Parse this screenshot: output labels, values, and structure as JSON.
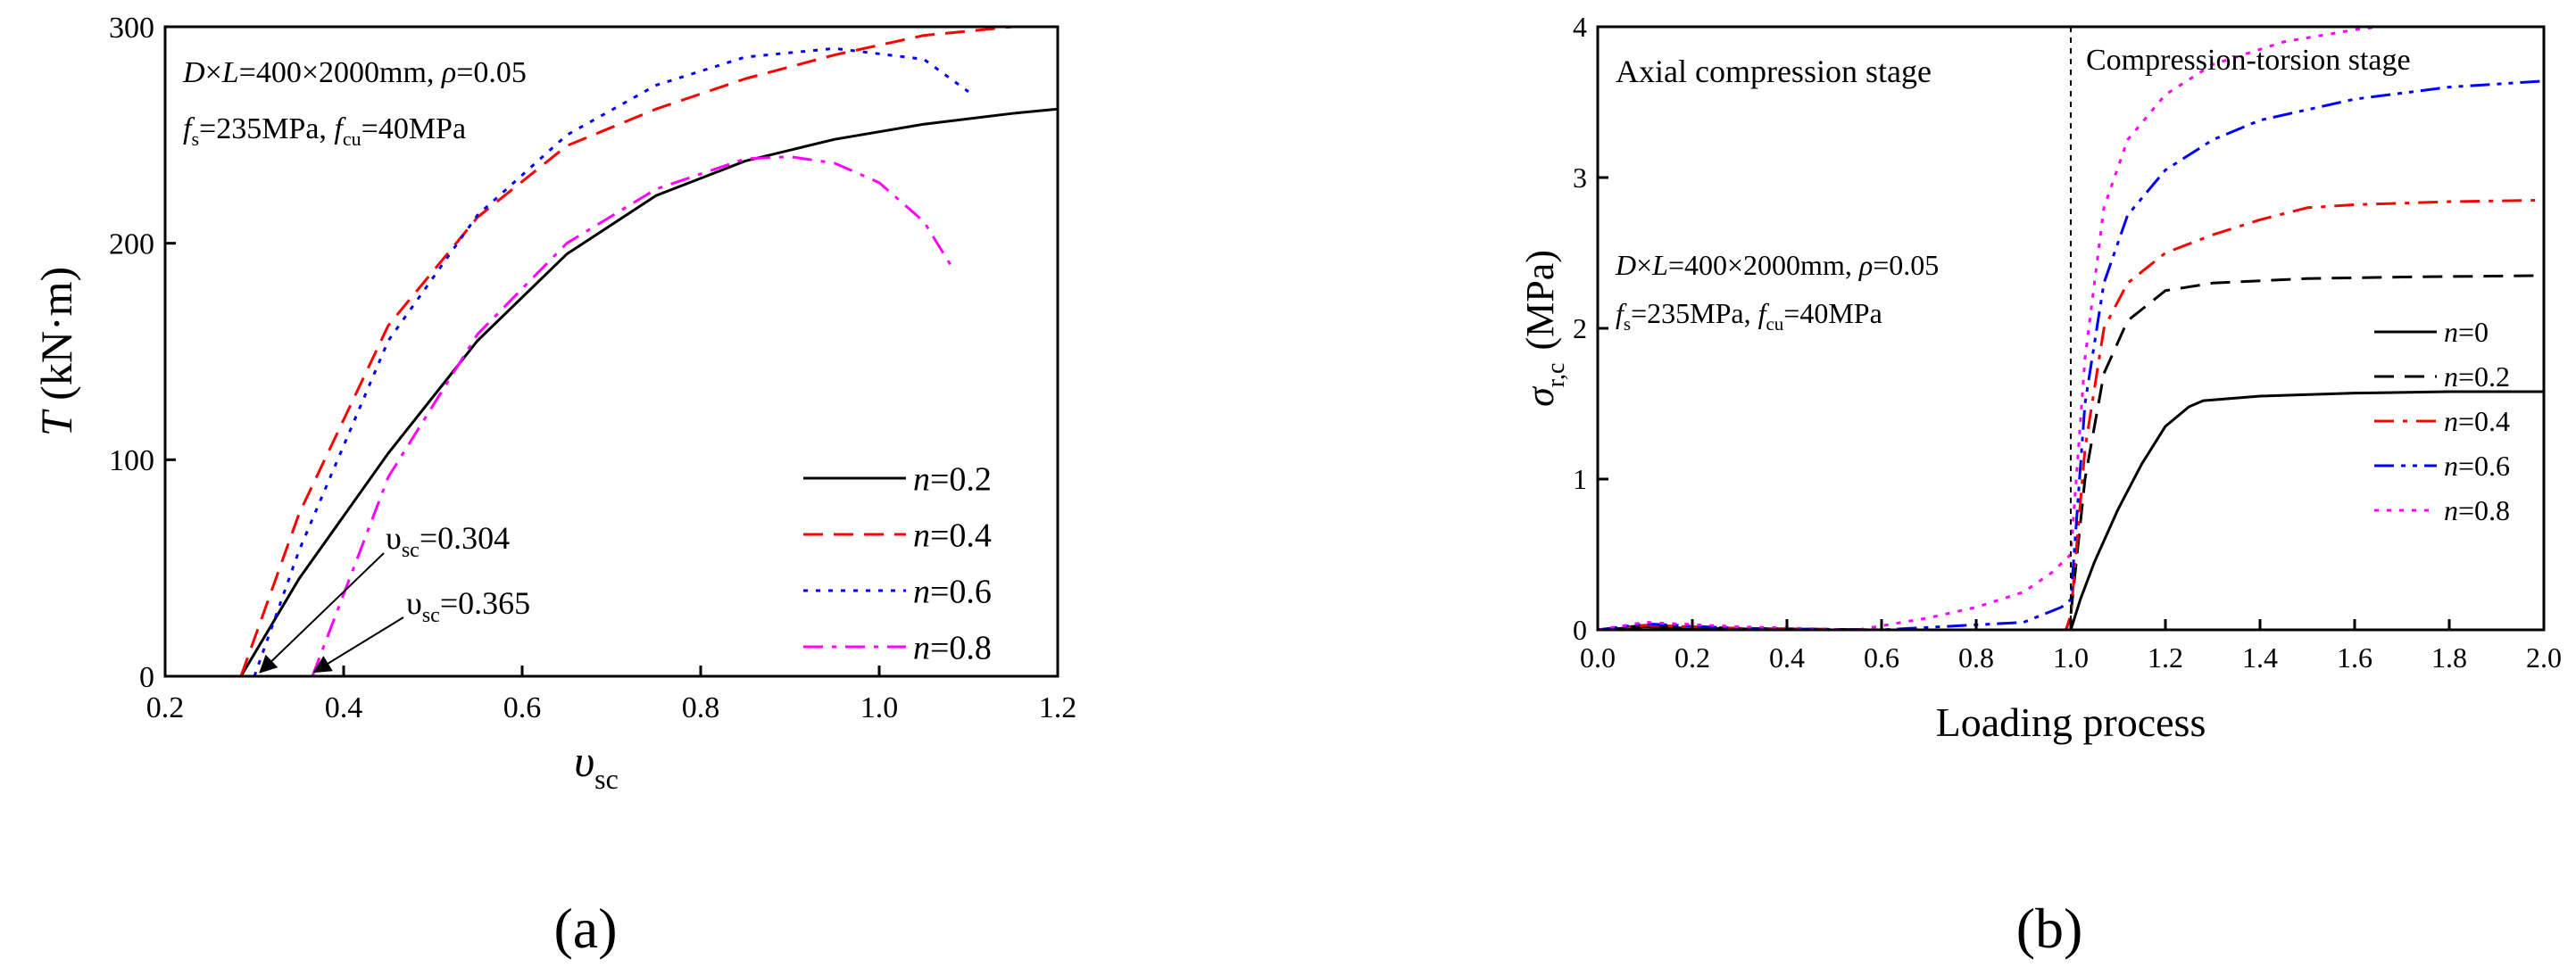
{
  "chart_data": [
    {
      "id": "a",
      "type": "line",
      "panel_label": "(a)",
      "xlabel_main": "υ",
      "xlabel_sub": "sc",
      "ylabel_main": "T",
      "ylabel_rest": " (kN·m)",
      "xlim": [
        0.2,
        1.2
      ],
      "ylim": [
        0,
        300
      ],
      "xticks": [
        "0.2",
        "0.4",
        "0.6",
        "0.8",
        "1.0",
        "1.2"
      ],
      "yticks": [
        "0",
        "100",
        "200",
        "300"
      ],
      "info_line1": "D×L=400×2000mm, ρ=0.05",
      "info_line2": "fs=235MPa, fcu=40MPa",
      "series": [
        {
          "name": "n=0.2",
          "color": "#000000",
          "dash": "solid",
          "x": [
            0.285,
            0.35,
            0.45,
            0.55,
            0.65,
            0.75,
            0.85,
            0.95,
            1.05,
            1.15,
            1.2
          ],
          "y": [
            0,
            45,
            103,
            155,
            195,
            222,
            238,
            248,
            255,
            260,
            262
          ]
        },
        {
          "name": "n=0.4",
          "color": "#ff0000",
          "dash": "dash",
          "x": [
            0.285,
            0.35,
            0.45,
            0.55,
            0.65,
            0.75,
            0.85,
            0.95,
            1.05,
            1.15
          ],
          "y": [
            0,
            75,
            162,
            212,
            245,
            262,
            276,
            287,
            296,
            300
          ]
        },
        {
          "name": "n=0.6",
          "color": "#0000ff",
          "dash": "dot",
          "x": [
            0.3,
            0.35,
            0.45,
            0.55,
            0.65,
            0.75,
            0.85,
            0.95,
            1.05,
            1.1
          ],
          "y": [
            0,
            58,
            155,
            213,
            250,
            273,
            286,
            290,
            285,
            270
          ]
        },
        {
          "name": "n=0.8",
          "color": "#ff00ff",
          "dash": "dashdot",
          "x": [
            0.365,
            0.45,
            0.55,
            0.65,
            0.75,
            0.85,
            0.9,
            0.95,
            1.0,
            1.05,
            1.08
          ],
          "y": [
            0,
            92,
            158,
            200,
            225,
            239,
            240,
            237,
            228,
            210,
            190
          ]
        }
      ],
      "annotations": [
        {
          "text_main": "υ",
          "text_sub": "sc",
          "text_rest": "=0.304",
          "x": 0.304
        },
        {
          "text_main": "υ",
          "text_sub": "sc",
          "text_rest": "=0.365",
          "x": 0.365
        }
      ]
    },
    {
      "id": "b",
      "type": "line",
      "panel_label": "(b)",
      "xlabel": "Loading process",
      "ylabel_main": "σ",
      "ylabel_sub": "r,c",
      "ylabel_rest": "(MPa)",
      "xlim": [
        0.0,
        2.0
      ],
      "ylim": [
        0,
        4
      ],
      "xticks": [
        "0.0",
        "0.2",
        "0.4",
        "0.6",
        "0.8",
        "1.0",
        "1.2",
        "1.4",
        "1.6",
        "1.8",
        "2.0"
      ],
      "yticks": [
        "0",
        "1",
        "2",
        "3",
        "4"
      ],
      "stage_left": "Axial compression  stage",
      "stage_right": "Compression-torsion stage",
      "divider_x": 1.0,
      "info_line1": "D×L=400×2000mm, ρ=0.05",
      "info_line2": "fs=235MPa, fcu=40MPa",
      "series": [
        {
          "name": "n=0",
          "color": "#000000",
          "dash": "solid",
          "x": [
            0,
            0.1,
            0.2,
            0.5,
            0.99,
            1.0,
            1.02,
            1.05,
            1.1,
            1.15,
            1.2,
            1.25,
            1.28,
            1.4,
            1.6,
            1.8,
            2.0
          ],
          "y": [
            0,
            0.02,
            0.01,
            0,
            0,
            0,
            0.2,
            0.45,
            0.8,
            1.1,
            1.35,
            1.48,
            1.52,
            1.55,
            1.57,
            1.58,
            1.58
          ]
        },
        {
          "name": "n=0.2",
          "color": "#000000",
          "dash": "dash",
          "x": [
            0,
            0.1,
            0.3,
            0.6,
            0.99,
            1.0,
            1.03,
            1.07,
            1.12,
            1.2,
            1.3,
            1.5,
            1.7,
            2.0
          ],
          "y": [
            0,
            0.03,
            0.01,
            0,
            0,
            0.1,
            1.0,
            1.7,
            2.05,
            2.25,
            2.3,
            2.33,
            2.34,
            2.35
          ]
        },
        {
          "name": "n=0.4",
          "color": "#ff0000",
          "dash": "dashdot",
          "x": [
            0,
            0.1,
            0.3,
            0.6,
            0.99,
            1.0,
            1.03,
            1.07,
            1.12,
            1.2,
            1.3,
            1.4,
            1.5,
            1.6,
            1.8,
            2.0
          ],
          "y": [
            0,
            0.03,
            0.01,
            0,
            0,
            0.1,
            1.2,
            2.0,
            2.3,
            2.5,
            2.62,
            2.72,
            2.8,
            2.82,
            2.84,
            2.85
          ]
        },
        {
          "name": "n=0.6",
          "color": "#0000ff",
          "dash": "dashdotdot",
          "x": [
            0,
            0.1,
            0.3,
            0.6,
            0.9,
            0.98,
            1.0,
            1.03,
            1.07,
            1.12,
            1.2,
            1.3,
            1.4,
            1.6,
            1.8,
            2.0
          ],
          "y": [
            0,
            0.04,
            0.01,
            0,
            0.05,
            0.15,
            0.2,
            1.5,
            2.3,
            2.75,
            3.05,
            3.25,
            3.38,
            3.52,
            3.6,
            3.64
          ]
        },
        {
          "name": "n=0.8",
          "color": "#ff00ff",
          "dash": "dot",
          "x": [
            0,
            0.1,
            0.3,
            0.55,
            0.7,
            0.8,
            0.9,
            0.96,
            1.0,
            1.03,
            1.07,
            1.12,
            1.2,
            1.3,
            1.45,
            1.6,
            1.65
          ],
          "y": [
            0,
            0.05,
            0.02,
            0,
            0.08,
            0.15,
            0.25,
            0.38,
            0.5,
            1.8,
            2.8,
            3.25,
            3.55,
            3.75,
            3.9,
            3.98,
            4.0
          ]
        }
      ]
    }
  ]
}
